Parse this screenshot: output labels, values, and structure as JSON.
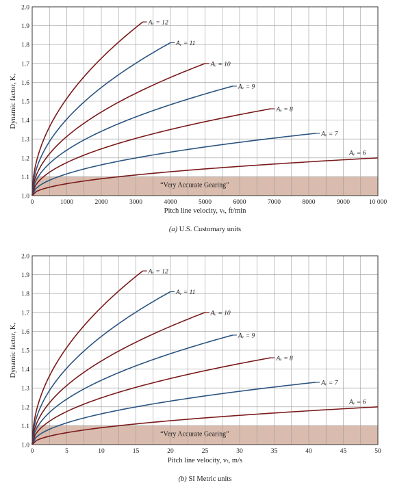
{
  "chart_data": [
    {
      "type": "line",
      "panel_id": "a",
      "caption_letter": "(a)",
      "caption_text": " U.S. Customary units",
      "xlabel": "Pitch line velocity, vₜ, ft/min",
      "ylabel": "Dynamic factor, Kᵥ",
      "xlim": [
        0,
        10000
      ],
      "ylim": [
        1.0,
        2.0
      ],
      "x_ticks": [
        0,
        1000,
        2000,
        3000,
        4000,
        5000,
        6000,
        7000,
        8000,
        9000,
        10000
      ],
      "x_tick_labels": [
        "0",
        "1000",
        "2000",
        "3000",
        "4000",
        "5000",
        "6000",
        "7000",
        "8000",
        "9000",
        "10 000"
      ],
      "y_ticks": [
        1.0,
        1.1,
        1.2,
        1.3,
        1.4,
        1.5,
        1.6,
        1.7,
        1.8,
        1.9,
        2.0
      ],
      "y_tick_labels": [
        "1.0",
        "1.1",
        "1.2",
        "1.3",
        "1.4",
        "1.5",
        "1.6",
        "1.7",
        "1.8",
        "1.9",
        "2.0"
      ],
      "grid": true,
      "shaded_region": {
        "label": "“Very Accurate Gearing”",
        "y_from": 1.0,
        "y_to": 1.1,
        "x_from": 0,
        "x_to": 10000,
        "color": "#d9bcae"
      },
      "series": [
        {
          "name": "Aᵥ = 12",
          "color": "#7a1a1a",
          "x_end": 3200,
          "y_end": 1.92
        },
        {
          "name": "Aᵥ = 11",
          "color": "#2b5580",
          "x_end": 4000,
          "y_end": 1.81
        },
        {
          "name": "Aᵥ = 10",
          "color": "#7a1a1a",
          "x_end": 5000,
          "y_end": 1.7
        },
        {
          "name": "Aᵥ = 9",
          "color": "#2b5580",
          "x_end": 5800,
          "y_end": 1.58
        },
        {
          "name": "Aᵥ = 8",
          "color": "#7a1a1a",
          "x_end": 6900,
          "y_end": 1.46
        },
        {
          "name": "Aᵥ = 7",
          "color": "#2b5580",
          "x_end": 8200,
          "y_end": 1.33
        },
        {
          "name": "Aᵥ = 6",
          "color": "#7a1a1a",
          "x_end": 10000,
          "y_end": 1.2
        }
      ]
    },
    {
      "type": "line",
      "panel_id": "b",
      "caption_letter": "(b)",
      "caption_text": " SI Metric units",
      "xlabel": "Pitch line velocity, vₜ, m/s",
      "ylabel": "Dynamic factor, Kᵥ",
      "xlim": [
        0,
        50
      ],
      "ylim": [
        1.0,
        2.0
      ],
      "x_ticks": [
        0,
        5,
        10,
        15,
        20,
        25,
        30,
        35,
        40,
        45,
        50
      ],
      "x_tick_labels": [
        "0",
        "5",
        "10",
        "15",
        "20",
        "25",
        "30",
        "35",
        "40",
        "45",
        "50"
      ],
      "y_ticks": [
        1.0,
        1.1,
        1.2,
        1.3,
        1.4,
        1.5,
        1.6,
        1.7,
        1.8,
        1.9,
        2.0
      ],
      "y_tick_labels": [
        "1.0",
        "1.1",
        "1.2",
        "1.3",
        "1.4",
        "1.5",
        "1.6",
        "1.7",
        "1.8",
        "1.9",
        "2.0"
      ],
      "grid": true,
      "shaded_region": {
        "label": "“Very Accurate Gearing”",
        "y_from": 1.0,
        "y_to": 1.1,
        "x_from": 0,
        "x_to": 50,
        "color": "#d9bcae"
      },
      "series": [
        {
          "name": "Aᵥ = 12",
          "color": "#7a1a1a",
          "x_end": 16,
          "y_end": 1.92
        },
        {
          "name": "Aᵥ = 11",
          "color": "#2b5580",
          "x_end": 20,
          "y_end": 1.81
        },
        {
          "name": "Aᵥ = 10",
          "color": "#7a1a1a",
          "x_end": 25,
          "y_end": 1.7
        },
        {
          "name": "Aᵥ = 9",
          "color": "#2b5580",
          "x_end": 29,
          "y_end": 1.58
        },
        {
          "name": "Aᵥ = 8",
          "color": "#7a1a1a",
          "x_end": 34.5,
          "y_end": 1.46
        },
        {
          "name": "Aᵥ = 7",
          "color": "#2b5580",
          "x_end": 41,
          "y_end": 1.33
        },
        {
          "name": "Aᵥ = 6",
          "color": "#7a1a1a",
          "x_end": 50,
          "y_end": 1.2
        }
      ]
    }
  ]
}
